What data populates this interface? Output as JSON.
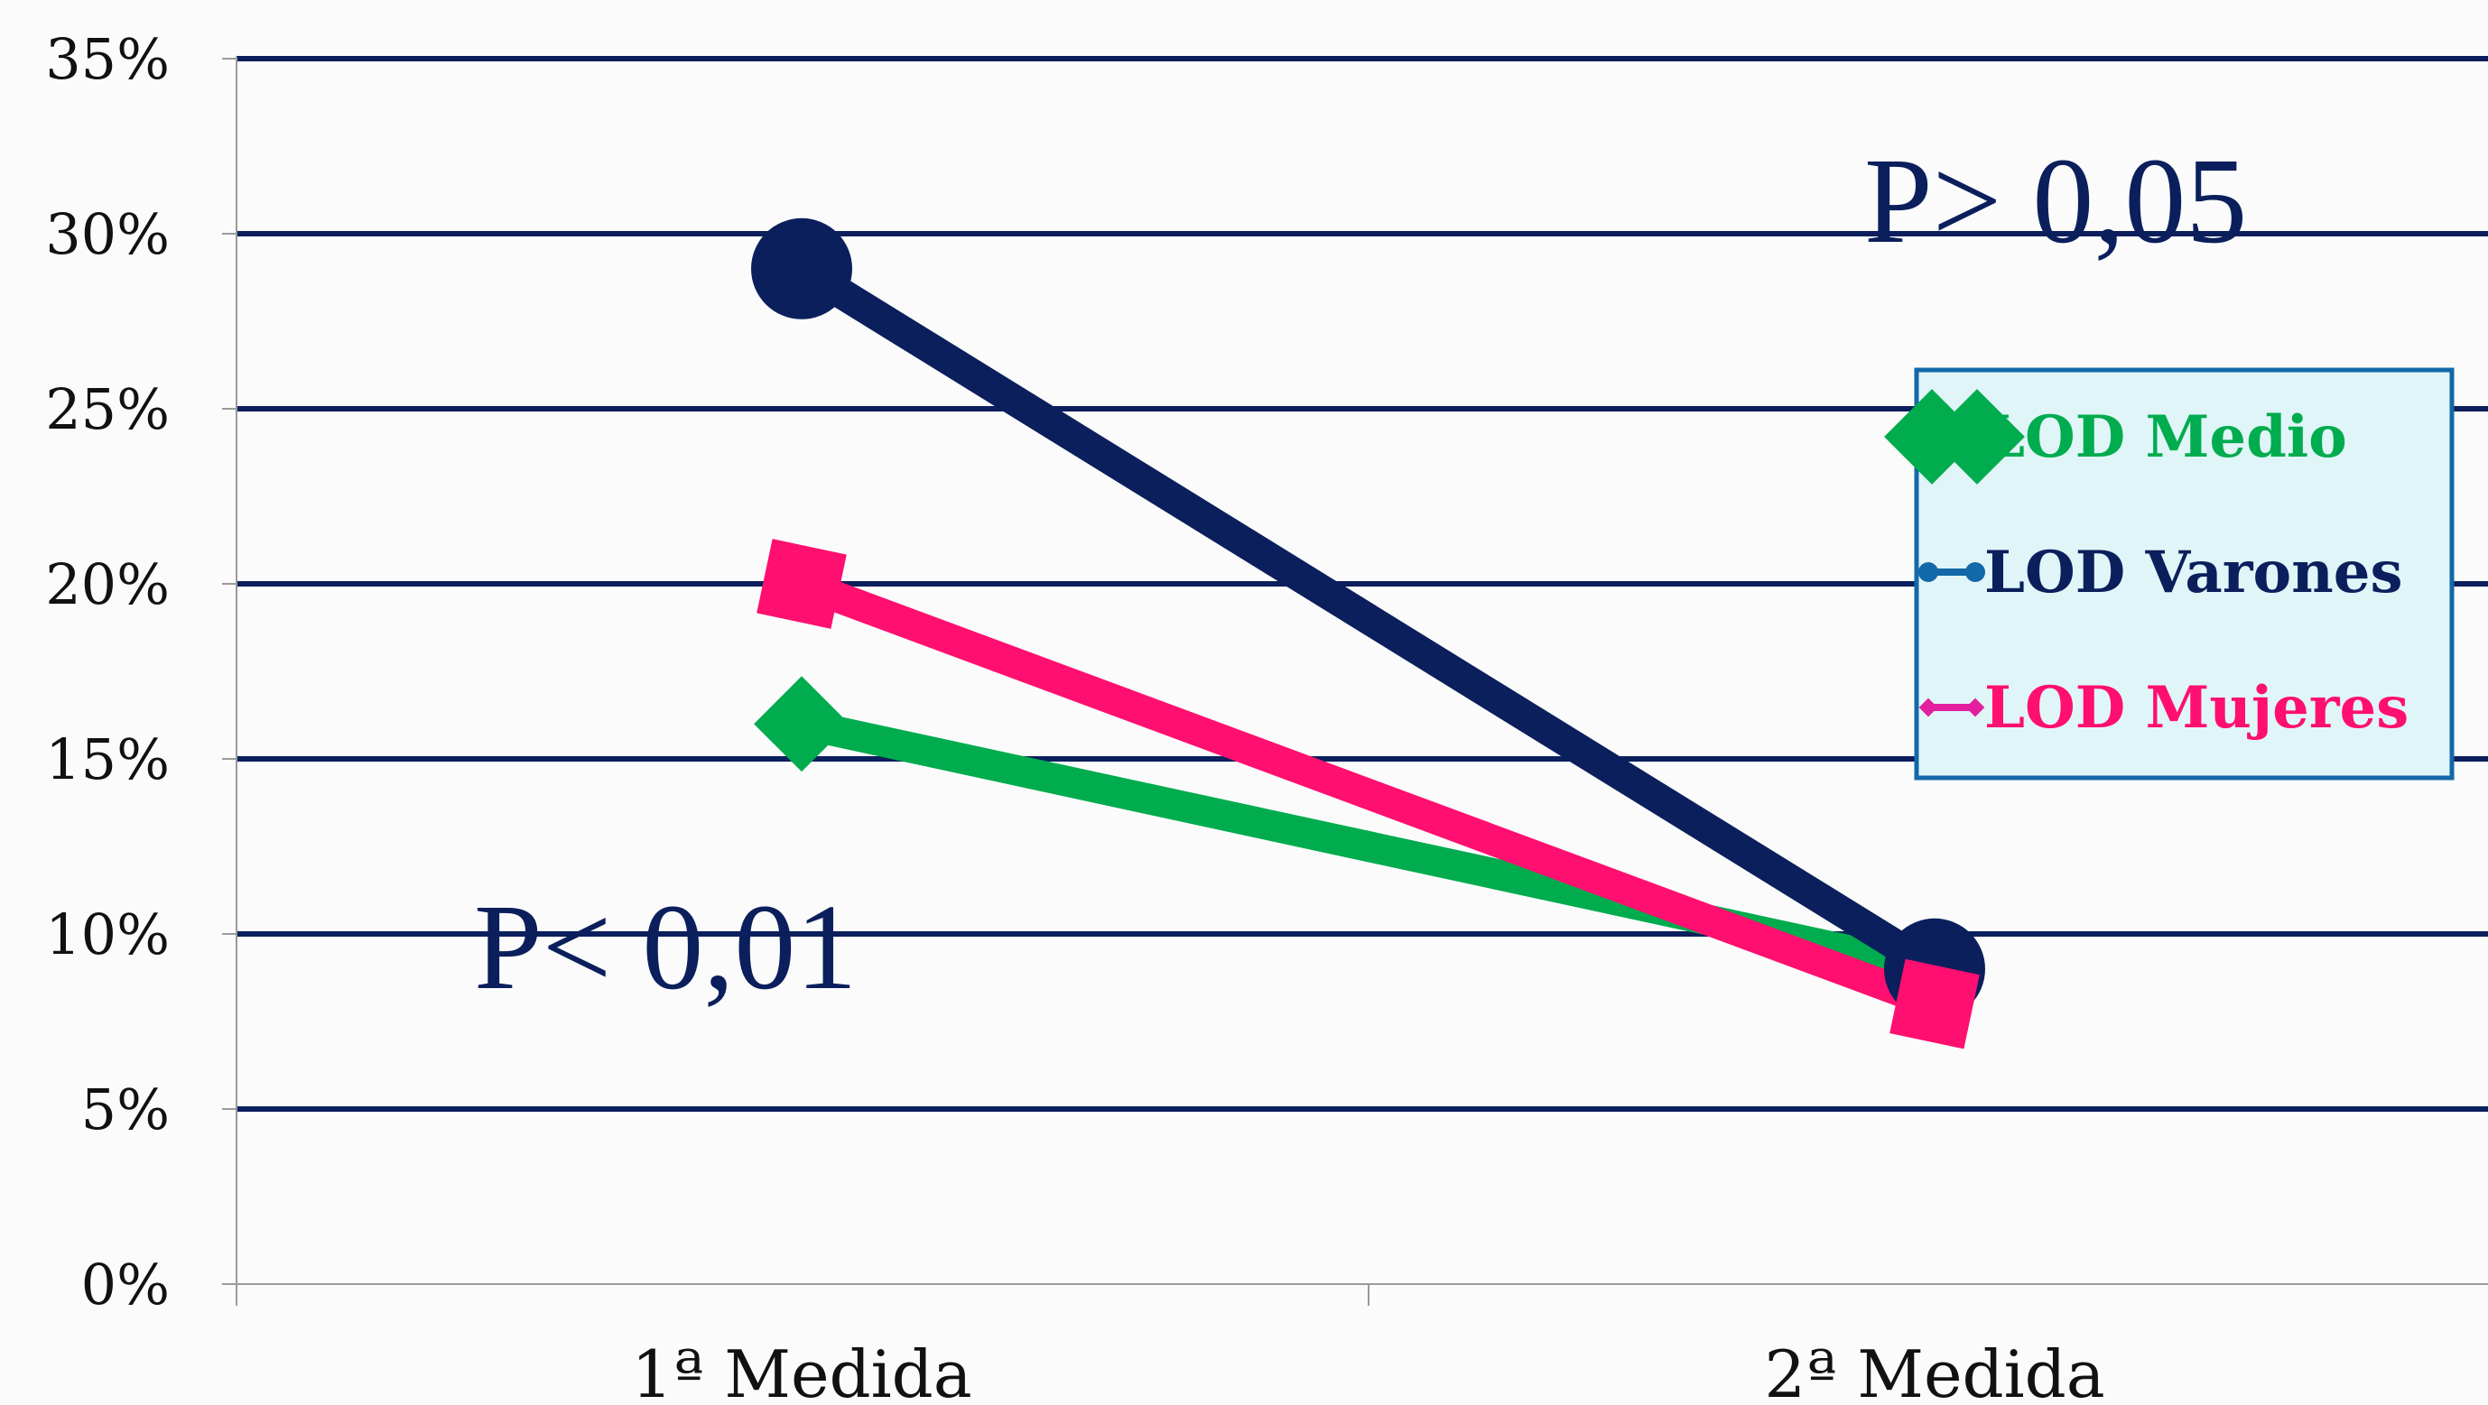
{
  "chart_data": {
    "type": "line",
    "title": "",
    "xlabel": "",
    "ylabel": "",
    "categories": [
      "1ª Medida",
      "2ª Medida"
    ],
    "y_ticks": [
      "0%",
      "5%",
      "10%",
      "15%",
      "20%",
      "25%",
      "30%",
      "35%"
    ],
    "ylim": [
      0,
      35
    ],
    "y_unit": "%",
    "grid": true,
    "legend_position": "right",
    "series": [
      {
        "name": "LOD Medio",
        "values": [
          16,
          9
        ],
        "color": "#00ac4e",
        "marker": "diamond"
      },
      {
        "name": "LOD Varones",
        "values": [
          29,
          9
        ],
        "color": "#0b1f5c",
        "marker": "circle",
        "legend_color": "#1268a8"
      },
      {
        "name": "LOD Mujeres",
        "values": [
          20,
          8
        ],
        "color": "#ff0f6f",
        "marker": "square",
        "legend_color": "#e11f9f"
      }
    ],
    "annotations": [
      {
        "text": "P> 0,05"
      },
      {
        "text": "P< 0,01"
      }
    ]
  }
}
